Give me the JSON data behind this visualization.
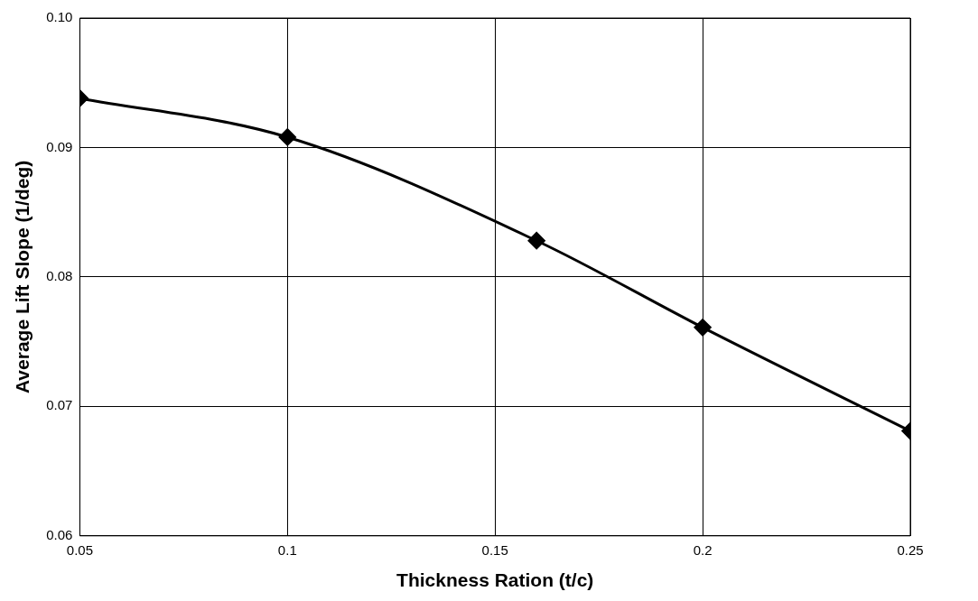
{
  "chart_data": {
    "type": "line",
    "xlabel": "Thickness Ration (t/c)",
    "ylabel": "Average Lift Slope (1/deg)",
    "x": [
      0.05,
      0.1,
      0.16,
      0.2,
      0.25
    ],
    "series": [
      {
        "color": "#000000",
        "values": [
          0.0938,
          0.0908,
          0.0828,
          0.0761,
          0.0681
        ]
      }
    ],
    "xlim": [
      0.05,
      0.25
    ],
    "xticks": [
      0.05,
      0.1,
      0.15,
      0.2,
      0.25
    ],
    "ylim": [
      0.06,
      0.1
    ],
    "yticks": [
      0.06,
      0.07,
      0.08,
      0.09,
      {
        "value": 0.1,
        "label": "0.10"
      }
    ],
    "grid": true,
    "legend": false,
    "marker": "diamond",
    "line_style": "solid"
  }
}
